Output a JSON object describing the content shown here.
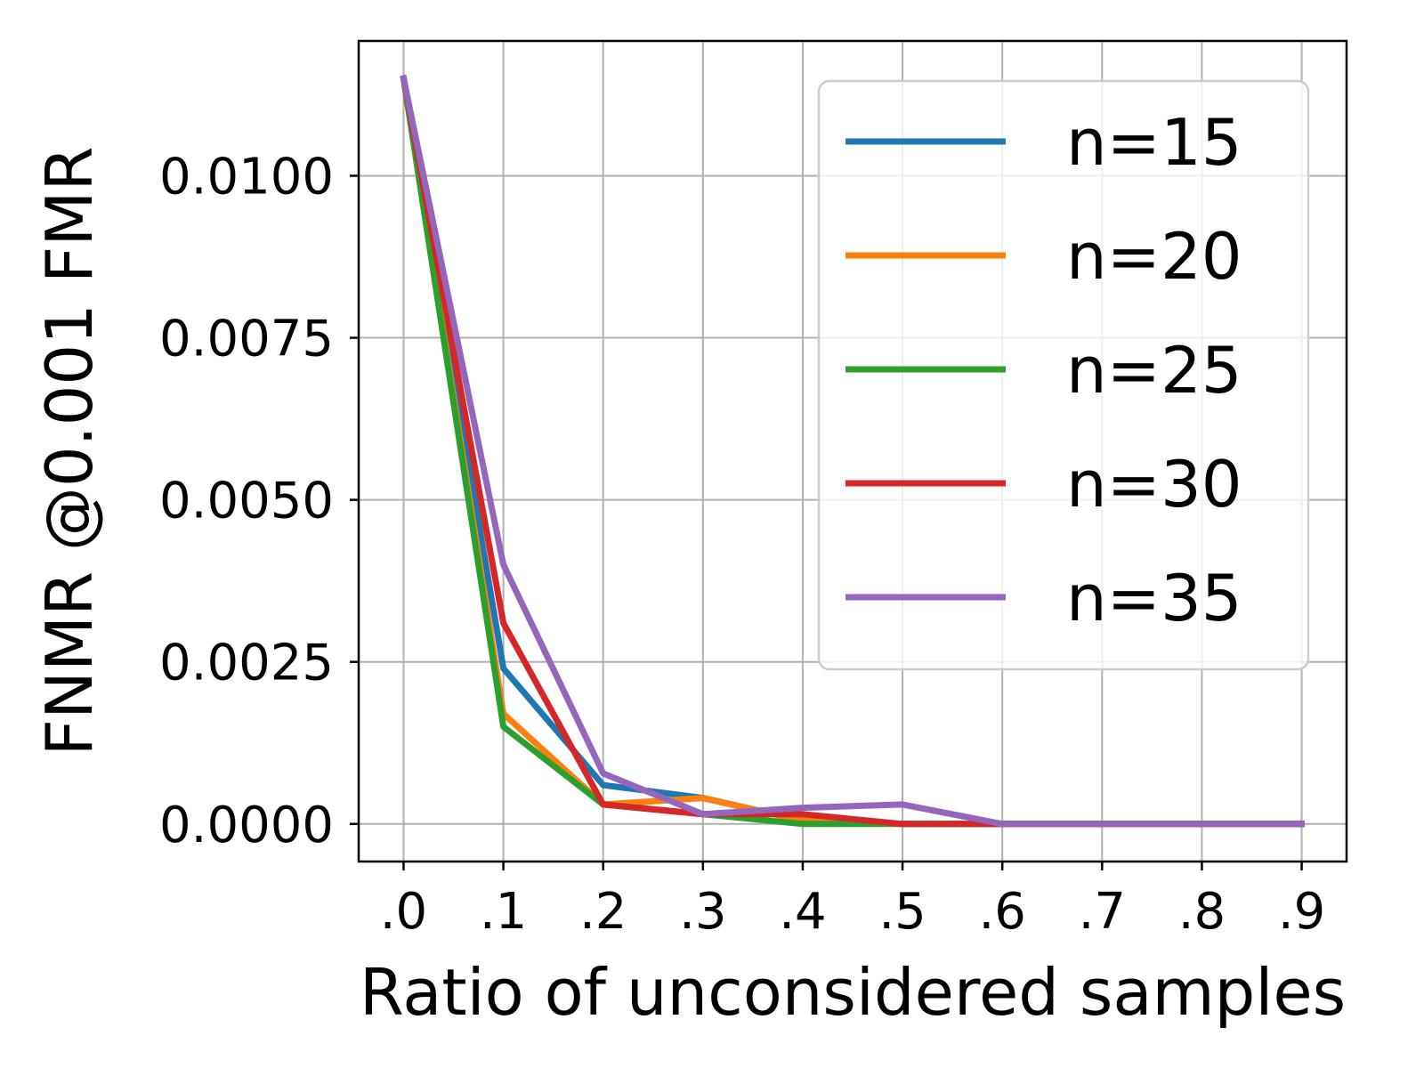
{
  "chart_data": {
    "type": "line",
    "xlabel": "Ratio of unconsidered samples",
    "ylabel": "FNMR @0.001 FMR",
    "x": [
      0.0,
      0.1,
      0.2,
      0.3,
      0.4,
      0.5,
      0.6,
      0.7,
      0.8,
      0.9
    ],
    "x_tick_labels": [
      ".0",
      ".1",
      ".2",
      ".3",
      ".4",
      ".5",
      ".6",
      ".7",
      ".8",
      ".9"
    ],
    "y_tick_values": [
      0.0,
      0.0025,
      0.005,
      0.0075,
      0.01
    ],
    "y_tick_labels": [
      "0.0000",
      "0.0025",
      "0.0050",
      "0.0075",
      "0.0100"
    ],
    "xlim": [
      -0.045,
      0.945
    ],
    "ylim": [
      -0.00058,
      0.01208
    ],
    "grid": true,
    "legend_position": "top-right",
    "series": [
      {
        "name": "n=15",
        "color": "#1f77b4",
        "values": [
          0.0115,
          0.0024,
          0.0006,
          0.0004,
          5e-05,
          0.0,
          0.0,
          0.0,
          0.0,
          0.0
        ]
      },
      {
        "name": "n=20",
        "color": "#ff7f0e",
        "values": [
          0.0115,
          0.0017,
          0.0003,
          0.0004,
          5e-05,
          0.0,
          0.0,
          0.0,
          0.0,
          0.0
        ]
      },
      {
        "name": "n=25",
        "color": "#2ca02c",
        "values": [
          0.0115,
          0.0015,
          0.0003,
          0.00015,
          0.0,
          0.0,
          0.0,
          0.0,
          0.0,
          0.0
        ]
      },
      {
        "name": "n=30",
        "color": "#d62728",
        "values": [
          0.0115,
          0.0031,
          0.0003,
          0.00015,
          0.00015,
          0.0,
          0.0,
          0.0,
          0.0,
          0.0
        ]
      },
      {
        "name": "n=35",
        "color": "#9467bd",
        "values": [
          0.0115,
          0.004,
          0.00078,
          0.00015,
          0.00025,
          0.0003,
          0.0,
          0.0,
          0.0,
          0.0
        ]
      }
    ]
  }
}
